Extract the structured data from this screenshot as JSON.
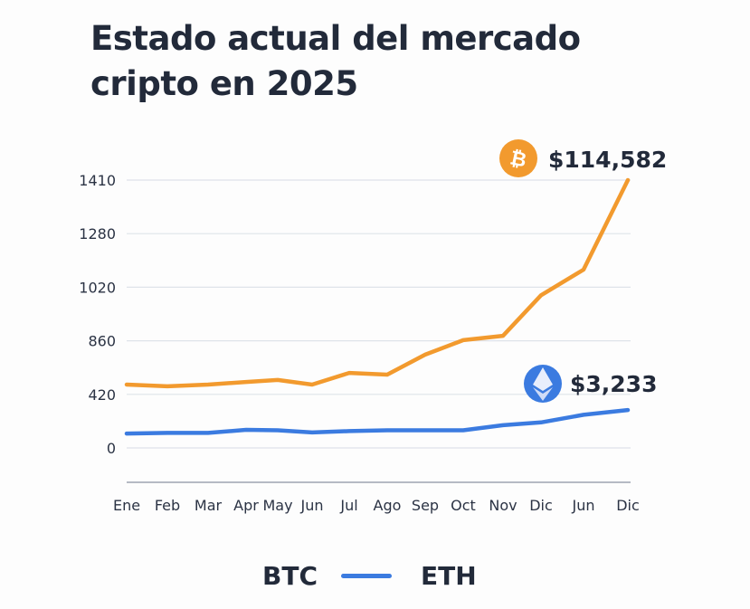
{
  "chart_data": {
    "type": "line",
    "title": "Estado actual del mercado\ncripto en 2025",
    "categories": [
      "Ene",
      "Feb",
      "Mar",
      "Apr",
      "May",
      "Jun",
      "Jul",
      "Ago",
      "Sep",
      "Oct",
      "Nov",
      "Dic",
      "Jun",
      "Dic"
    ],
    "y_ticks": [
      0,
      420,
      860,
      1020,
      1280,
      1410
    ],
    "y_scale": "non-uniform (ticks evenly spaced)",
    "grid": true,
    "series": [
      {
        "name": "BTC",
        "color": "#f29a2e",
        "values": [
          500,
          486,
          500,
          522,
          538,
          500,
          596,
          582,
          746,
          862,
          875,
          996,
          1105,
          1410
        ],
        "end_label": "$114,582",
        "icon": "bitcoin-icon"
      },
      {
        "name": "ETH",
        "color": "#3b7be0",
        "values": [
          113,
          118,
          118,
          142,
          138,
          121,
          132,
          138,
          138,
          138,
          178,
          200,
          260,
          297
        ],
        "end_label": "$3,233",
        "icon": "ethereum-icon"
      }
    ],
    "legend": {
      "position": "bottom",
      "items": [
        "BTC",
        "ETH"
      ]
    }
  }
}
